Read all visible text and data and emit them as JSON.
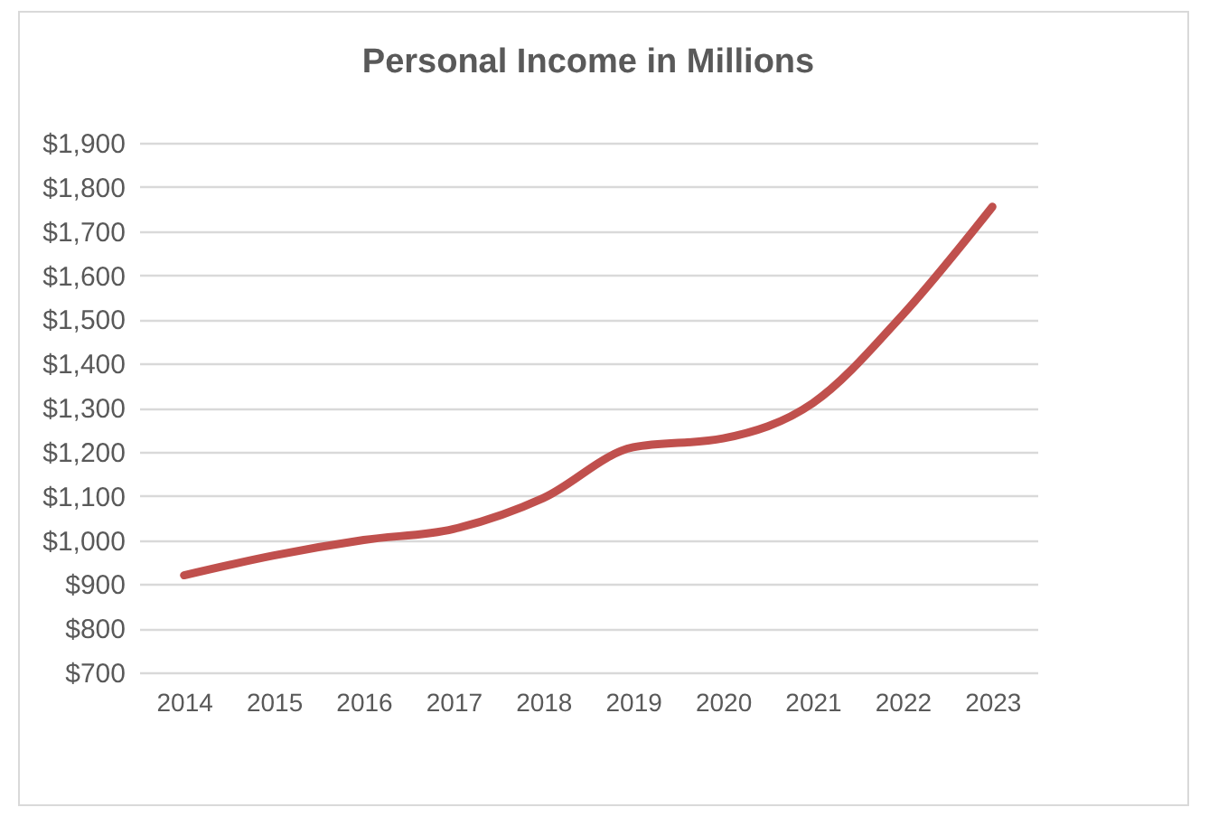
{
  "chart_data": {
    "type": "line",
    "title": "Personal Income in Millions",
    "categories": [
      "2014",
      "2015",
      "2016",
      "2017",
      "2018",
      "2019",
      "2020",
      "2021",
      "2022",
      "2023"
    ],
    "series": [
      {
        "color": "#c0504d",
        "values": [
          920,
          965,
          1000,
          1025,
          1095,
          1210,
          1230,
          1310,
          1510,
          1755
        ]
      }
    ],
    "ylim": [
      700,
      1900
    ],
    "yticks": [
      {
        "value": 700,
        "label": "$700"
      },
      {
        "value": 800,
        "label": "$800"
      },
      {
        "value": 900,
        "label": "$900"
      },
      {
        "value": 1000,
        "label": "$1,000"
      },
      {
        "value": 1100,
        "label": "$1,100"
      },
      {
        "value": 1200,
        "label": "$1,200"
      },
      {
        "value": 1300,
        "label": "$1,300"
      },
      {
        "value": 1400,
        "label": "$1,400"
      },
      {
        "value": 1500,
        "label": "$1,500"
      },
      {
        "value": 1600,
        "label": "$1,600"
      },
      {
        "value": 1700,
        "label": "$1,700"
      },
      {
        "value": 1800,
        "label": "$1,800"
      },
      {
        "value": 1900,
        "label": "$1,900"
      }
    ],
    "grid": "y",
    "marker": "none",
    "line_style": "solid"
  }
}
